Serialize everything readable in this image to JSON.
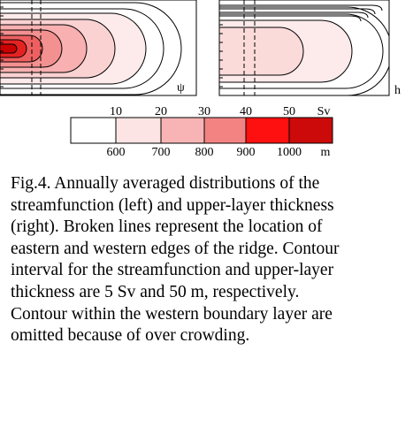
{
  "panels": {
    "left_label": "ψ",
    "right_label": "h"
  },
  "colorbar": {
    "upper_labels": [
      "10",
      "20",
      "30",
      "40",
      "50"
    ],
    "upper_unit": "Sv",
    "lower_labels": [
      "600",
      "700",
      "800",
      "900",
      "1000"
    ],
    "lower_unit": "m"
  },
  "caption": {
    "lines": [
      "Fig.4. Annually averaged distributions of the",
      "streamfunction (left) and upper-layer thickness",
      "(right). Broken lines represent the location of",
      "eastern and western edges of the ridge. Contour",
      "interval for the streamfunction and upper-layer",
      "thickness are 5 Sv and 50 m, respectively.",
      "Contour within the western boundary layer are",
      "omitted because of over crowding."
    ]
  }
}
